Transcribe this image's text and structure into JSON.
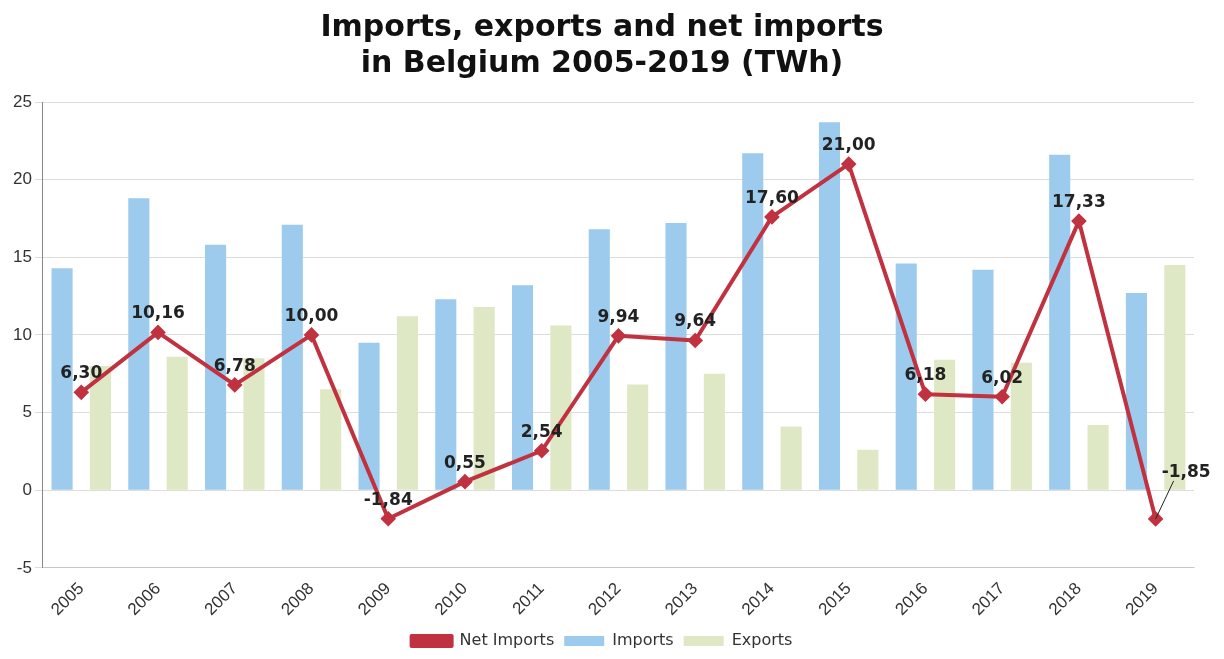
{
  "chart_data": {
    "type": "bar",
    "title": "Imports, exports and net imports\nin Belgium 2005-2019 (TWh)",
    "categories": [
      "2005",
      "2006",
      "2007",
      "2008",
      "2009",
      "2010",
      "2011",
      "2012",
      "2013",
      "2014",
      "2015",
      "2016",
      "2017",
      "2018",
      "2019"
    ],
    "series": [
      {
        "name": "Imports",
        "color": "#9dcbee",
        "values": [
          14.3,
          18.8,
          15.8,
          17.1,
          9.5,
          12.3,
          13.2,
          16.8,
          17.2,
          21.7,
          23.7,
          14.6,
          14.2,
          21.6,
          12.7
        ]
      },
      {
        "name": "Exports",
        "color": "#dfe8c4",
        "values": [
          8.0,
          8.6,
          8.5,
          6.5,
          11.2,
          11.8,
          10.6,
          6.8,
          7.5,
          4.1,
          2.6,
          8.4,
          8.2,
          4.2,
          14.5
        ]
      },
      {
        "name": "Net Imports",
        "type": "line",
        "color": "#c0323f",
        "marker": "diamond",
        "values": [
          6.3,
          10.16,
          6.78,
          10.0,
          -1.84,
          0.55,
          2.54,
          9.94,
          9.64,
          17.6,
          21.0,
          6.18,
          6.02,
          17.33,
          -1.85
        ],
        "value_labels": [
          "6,30",
          "10,16",
          "6,78",
          "10,00",
          "-1,84",
          "0,55",
          "2,54",
          "9,94",
          "9,64",
          "17,60",
          "21,00",
          "6,18",
          "6,02",
          "17,33",
          "-1,85"
        ]
      }
    ],
    "ylim": [
      -5,
      25
    ],
    "yticks": [
      -5,
      0,
      5,
      10,
      15,
      20,
      25
    ],
    "grid": "y",
    "legend": "bottom"
  }
}
